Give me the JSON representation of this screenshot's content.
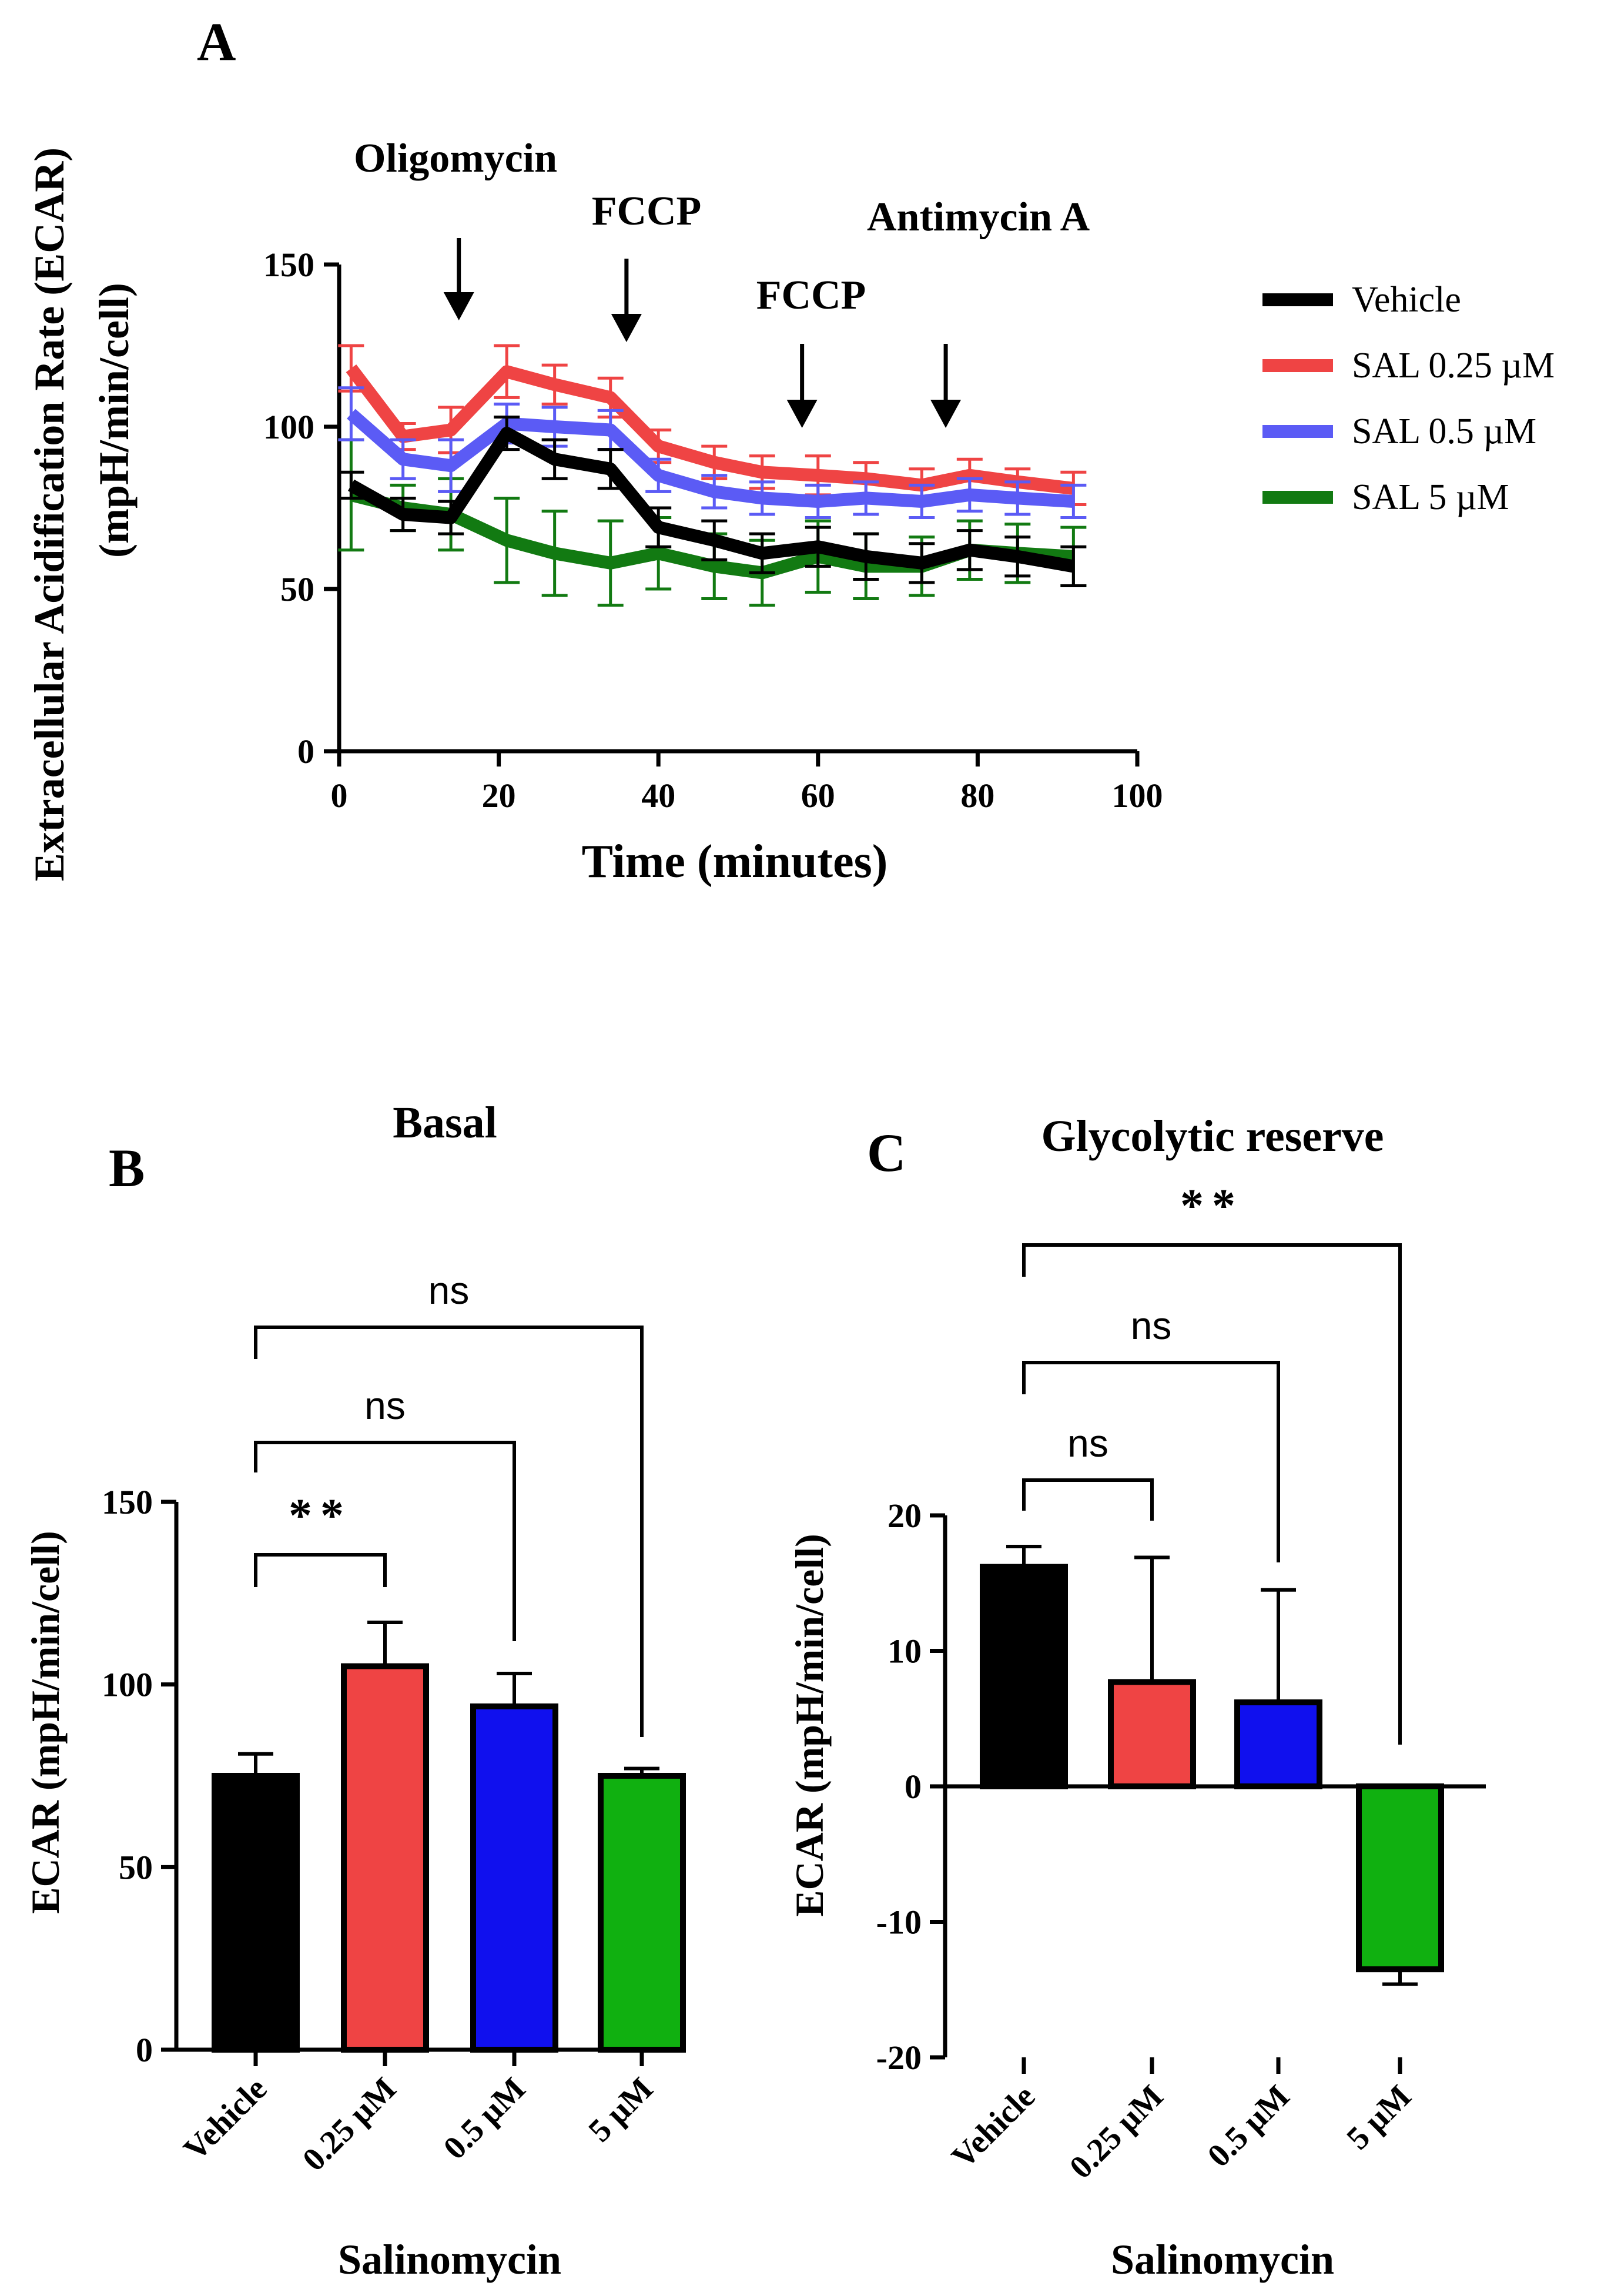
{
  "panels": {
    "A": "A",
    "B": "B",
    "C": "C"
  },
  "chart_data": [
    {
      "id": "A",
      "type": "line",
      "title": "",
      "xlabel": "Time (minutes)",
      "ylabel_line1": "Extracellular Acidification Rate (ECAR)",
      "ylabel_line2": "(mpH/min/cell)",
      "xlim": [
        0,
        100
      ],
      "ylim": [
        0,
        150
      ],
      "xticks": [
        0,
        20,
        40,
        60,
        80,
        100
      ],
      "yticks": [
        0,
        50,
        100,
        150
      ],
      "x": [
        1.5,
        8,
        14,
        21,
        27,
        34,
        40,
        47,
        53,
        60,
        66,
        73,
        79,
        85,
        92
      ],
      "series": [
        {
          "name": "Vehicle",
          "color": "#000000",
          "values": [
            82,
            73,
            72,
            98,
            90,
            87,
            69,
            65,
            61,
            63,
            60,
            58,
            62,
            60,
            57
          ],
          "errors": [
            4,
            5,
            5,
            5,
            6,
            6,
            6,
            6,
            6,
            6,
            7,
            6,
            6,
            6,
            6
          ]
        },
        {
          "name": " SAL 0.25 µM",
          "color": "#ef4444",
          "values": [
            118,
            97,
            99,
            117,
            113,
            109,
            94,
            89,
            86,
            85,
            84,
            82,
            85,
            83,
            81
          ],
          "errors": [
            7,
            4,
            7,
            8,
            6,
            6,
            5,
            5,
            5,
            6,
            5,
            5,
            5,
            4,
            5
          ]
        },
        {
          "name": "SAL 0.5 µM",
          "color": "#5b5bf5",
          "values": [
            104,
            90,
            88,
            101,
            100,
            99,
            85,
            80,
            78,
            77,
            78,
            77,
            79,
            78,
            77
          ],
          "errors": [
            8,
            6,
            8,
            6,
            6,
            6,
            5,
            5,
            5,
            5,
            5,
            5,
            5,
            5,
            5
          ]
        },
        {
          "name": "SAL 5 µM",
          "color": "#127a12",
          "values": [
            79,
            75,
            73,
            65,
            61,
            58,
            61,
            57,
            55,
            60,
            57,
            57,
            62,
            61,
            60
          ],
          "errors": [
            17,
            7,
            11,
            13,
            13,
            13,
            11,
            10,
            10,
            11,
            10,
            9,
            9,
            9,
            9
          ]
        }
      ],
      "annotations": [
        {
          "label": "Oligomycin",
          "x": 15
        },
        {
          "label": "FCCP",
          "x": 36
        },
        {
          "label": "FCCP",
          "x": 58
        },
        {
          "label": "Antimycin A",
          "x": 76
        }
      ]
    },
    {
      "id": "B",
      "type": "bar",
      "title": "Basal",
      "xlabel": "Salinomycin",
      "ylabel": "ECAR (mpH/min/cell)",
      "ylim": [
        0,
        150
      ],
      "yticks": [
        0,
        50,
        100,
        150
      ],
      "categories": [
        "Vehicle",
        "0.25 µM",
        "0.5 µM",
        "5 µM"
      ],
      "values": [
        75,
        105,
        94,
        75
      ],
      "errors": [
        6,
        12,
        9,
        2
      ],
      "colors": [
        "#000000",
        "#ef4444",
        "#1010ee",
        "#10b010"
      ],
      "comparisons": [
        {
          "from": 0,
          "to": 1,
          "label": "**"
        },
        {
          "from": 0,
          "to": 2,
          "label": "ns"
        },
        {
          "from": 0,
          "to": 3,
          "label": "ns"
        }
      ]
    },
    {
      "id": "C",
      "type": "bar",
      "title": "Glycolytic reserve",
      "xlabel": "Salinomycin",
      "ylabel": "ECAR (mpH/min/cell)",
      "ylim": [
        -20,
        20
      ],
      "yticks": [
        -20,
        -10,
        0,
        10,
        20
      ],
      "categories": [
        "Vehicle",
        "0.25 µM",
        "0.5 µM",
        "5 µM"
      ],
      "values": [
        16.2,
        7.7,
        6.2,
        -13.5
      ],
      "errors": [
        1.5,
        9.2,
        8.3,
        1.1
      ],
      "colors": [
        "#000000",
        "#ef4444",
        "#1010ee",
        "#10b010"
      ],
      "comparisons": [
        {
          "from": 0,
          "to": 1,
          "label": "ns"
        },
        {
          "from": 0,
          "to": 2,
          "label": "ns"
        },
        {
          "from": 0,
          "to": 3,
          "label": "**"
        }
      ]
    }
  ]
}
